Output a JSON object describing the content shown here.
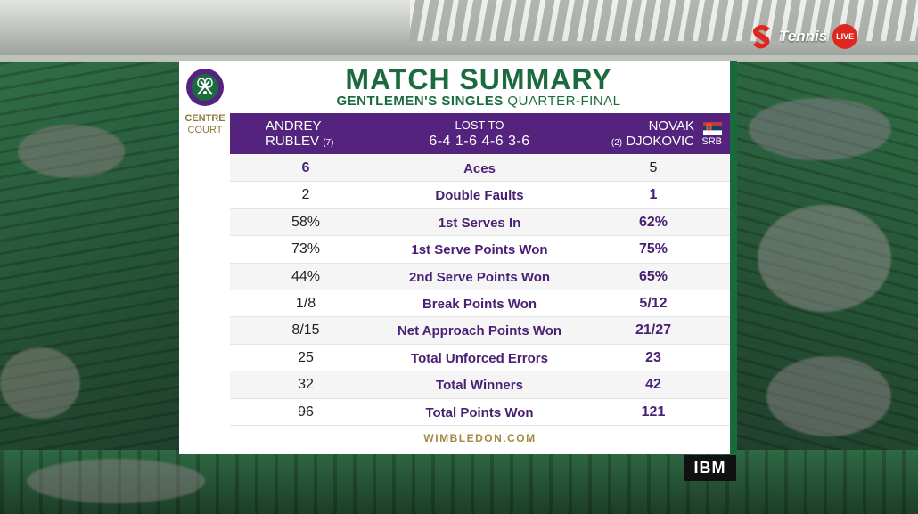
{
  "broadcaster": {
    "channel": "Tennis",
    "live_badge": "LIVE",
    "sponsor": "IBM"
  },
  "venue": {
    "crest_text": "THE CHAMPIONSHIPS · WIMBLEDON",
    "court_line1": "CENTRE",
    "court_line2": "COURT"
  },
  "summary": {
    "title": "MATCH SUMMARY",
    "event": "GENTLEMEN'S SINGLES",
    "round": "QUARTER-FINAL",
    "result_label": "LOST TO",
    "score": "6-4 1-6 4-6 3-6",
    "footer": "WIMBLEDON.COM"
  },
  "players": {
    "left": {
      "first": "ANDREY",
      "last": "RUBLEV",
      "seed": "(7)"
    },
    "right": {
      "first": "NOVAK",
      "last": "DJOKOVIC",
      "seed": "(2)",
      "nation": "SRB"
    }
  },
  "stats": [
    {
      "label": "Aces",
      "left": "6",
      "right": "5",
      "winner": "left"
    },
    {
      "label": "Double Faults",
      "left": "2",
      "right": "1",
      "winner": "right"
    },
    {
      "label": "1st Serves In",
      "left": "58%",
      "right": "62%",
      "winner": "right"
    },
    {
      "label": "1st Serve Points Won",
      "left": "73%",
      "right": "75%",
      "winner": "right"
    },
    {
      "label": "2nd Serve Points Won",
      "left": "44%",
      "right": "65%",
      "winner": "right"
    },
    {
      "label": "Break Points Won",
      "left": "1/8",
      "right": "5/12",
      "winner": "right"
    },
    {
      "label": "Net Approach Points Won",
      "left": "8/15",
      "right": "21/27",
      "winner": "right"
    },
    {
      "label": "Total Unforced Errors",
      "left": "25",
      "right": "23",
      "winner": "right"
    },
    {
      "label": "Total Winners",
      "left": "32",
      "right": "42",
      "winner": "right"
    },
    {
      "label": "Total Points Won",
      "left": "96",
      "right": "121",
      "winner": "right"
    }
  ],
  "colors": {
    "wimbledon_green": "#1c6b3f",
    "wimbledon_purple": "#53237e",
    "gold": "#a08a3e",
    "live_red": "#e0261e"
  }
}
